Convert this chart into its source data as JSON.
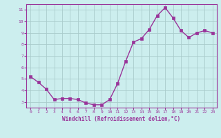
{
  "x": [
    0,
    1,
    2,
    3,
    4,
    5,
    6,
    7,
    8,
    9,
    10,
    11,
    12,
    13,
    14,
    15,
    16,
    17,
    18,
    19,
    20,
    21,
    22,
    23
  ],
  "y": [
    5.2,
    4.7,
    4.1,
    3.2,
    3.3,
    3.3,
    3.2,
    2.9,
    2.75,
    2.75,
    3.2,
    4.6,
    6.5,
    8.2,
    8.5,
    9.3,
    10.5,
    11.2,
    10.3,
    9.2,
    8.6,
    9.0,
    9.2,
    9.0
  ],
  "line_color": "#993399",
  "marker_color": "#993399",
  "bg_color": "#cceeee",
  "grid_color": "#aacccc",
  "xlabel": "Windchill (Refroidissement éolien,°C)",
  "xlabel_color": "#993399",
  "tick_color": "#993399",
  "ylim": [
    2.5,
    11.5
  ],
  "yticks": [
    3,
    4,
    5,
    6,
    7,
    8,
    9,
    10,
    11
  ],
  "xticks": [
    0,
    1,
    2,
    3,
    4,
    5,
    6,
    7,
    8,
    9,
    10,
    11,
    12,
    13,
    14,
    15,
    16,
    17,
    18,
    19,
    20,
    21,
    22,
    23
  ],
  "spine_color": "#993399",
  "marker_size": 2.5,
  "line_width": 1.0
}
